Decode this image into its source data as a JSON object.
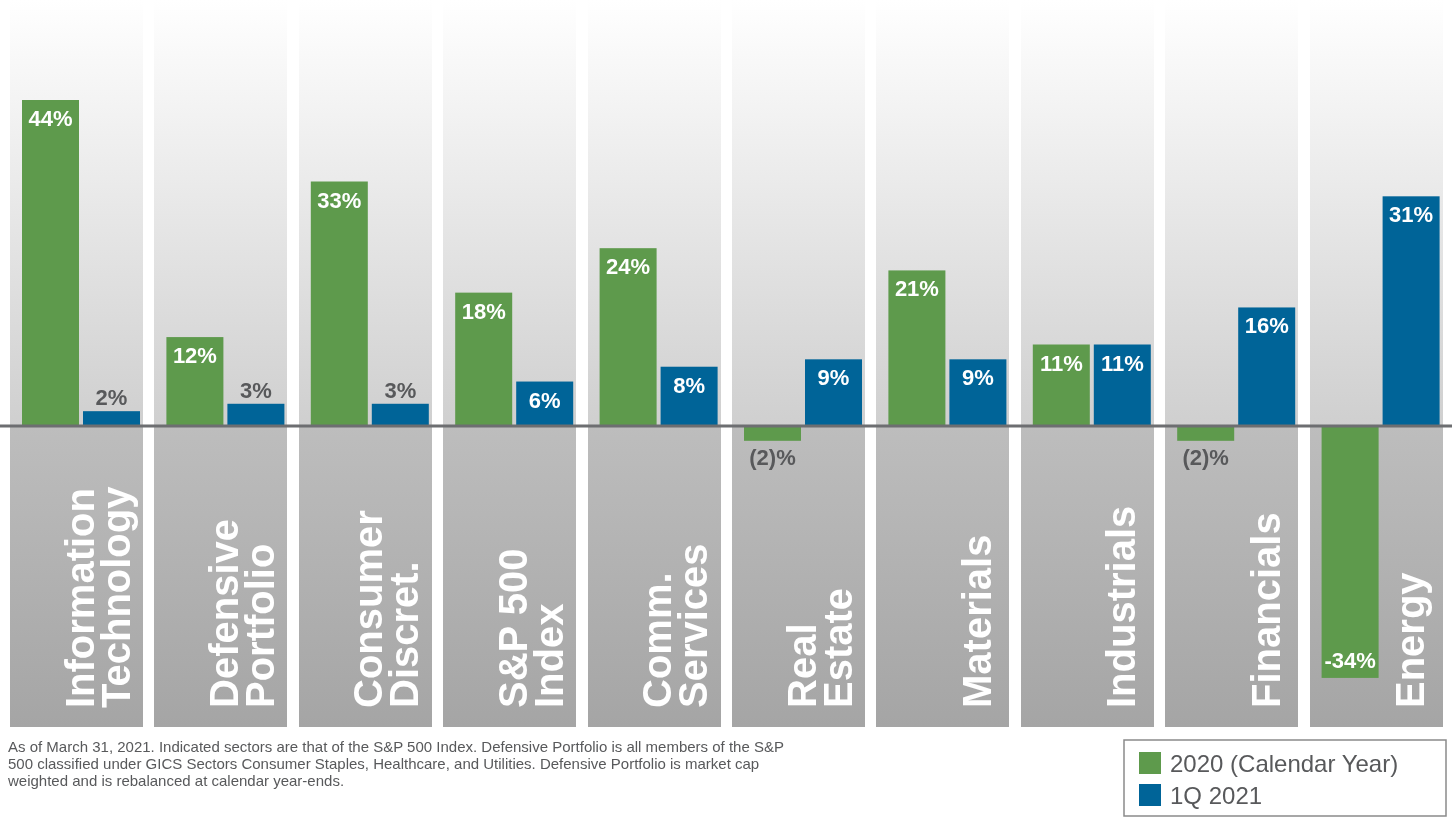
{
  "chart_data": {
    "type": "bar",
    "categories": [
      "Information Technology",
      "Defensive Portfolio",
      "Consumer Discret.",
      "S&P 500 Index",
      "Comm. Services",
      "Real Estate",
      "Materials",
      "Industrials",
      "Financials",
      "Energy"
    ],
    "series": [
      {
        "name": "2020 (Calendar Year)",
        "color": "#5e9a4c",
        "values": [
          44,
          12,
          33,
          18,
          24,
          -2,
          21,
          11,
          -2,
          -34
        ],
        "value_labels": [
          "44%",
          "12%",
          "33%",
          "18%",
          "24%",
          "(2)%",
          "21%",
          "11%",
          "(2)%",
          "-34%"
        ]
      },
      {
        "name": "1Q 2021",
        "color": "#006498",
        "values": [
          2,
          3,
          3,
          6,
          8,
          9,
          9,
          11,
          16,
          31
        ],
        "value_labels": [
          "2%",
          "3%",
          "3%",
          "6%",
          "8%",
          "9%",
          "9%",
          "11%",
          "16%",
          "31%"
        ]
      }
    ],
    "legend": "bottom right",
    "annotations": [
      "As of March 31, 2021. Indicated sectors are that of the S&P 500 Index. Defensive Portfolio is all members of the S&P 500 classified under GICS Sectors Consumer Staples, Healthcare, and Utilities. Defensive Portfolio is market cap weighted and is rebalanced at calendar year-ends."
    ]
  }
}
